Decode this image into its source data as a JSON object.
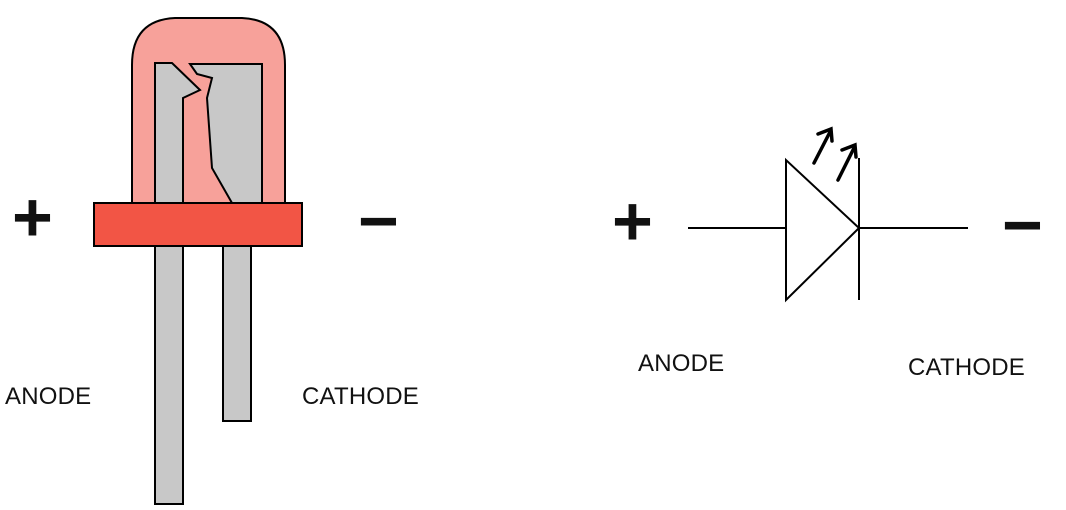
{
  "led_diagram": {
    "plus_symbol": "+",
    "minus_symbol": "−",
    "anode_label": "ANODE",
    "cathode_label": "CATHODE"
  },
  "schematic_symbol": {
    "plus_symbol": "+",
    "minus_symbol": "−",
    "anode_label": "ANODE",
    "cathode_label": "CATHODE"
  },
  "colors": {
    "led_dome": "#f7a19a",
    "led_base": "#f25545",
    "lead": "#c8c8c8",
    "outline": "#000000"
  }
}
